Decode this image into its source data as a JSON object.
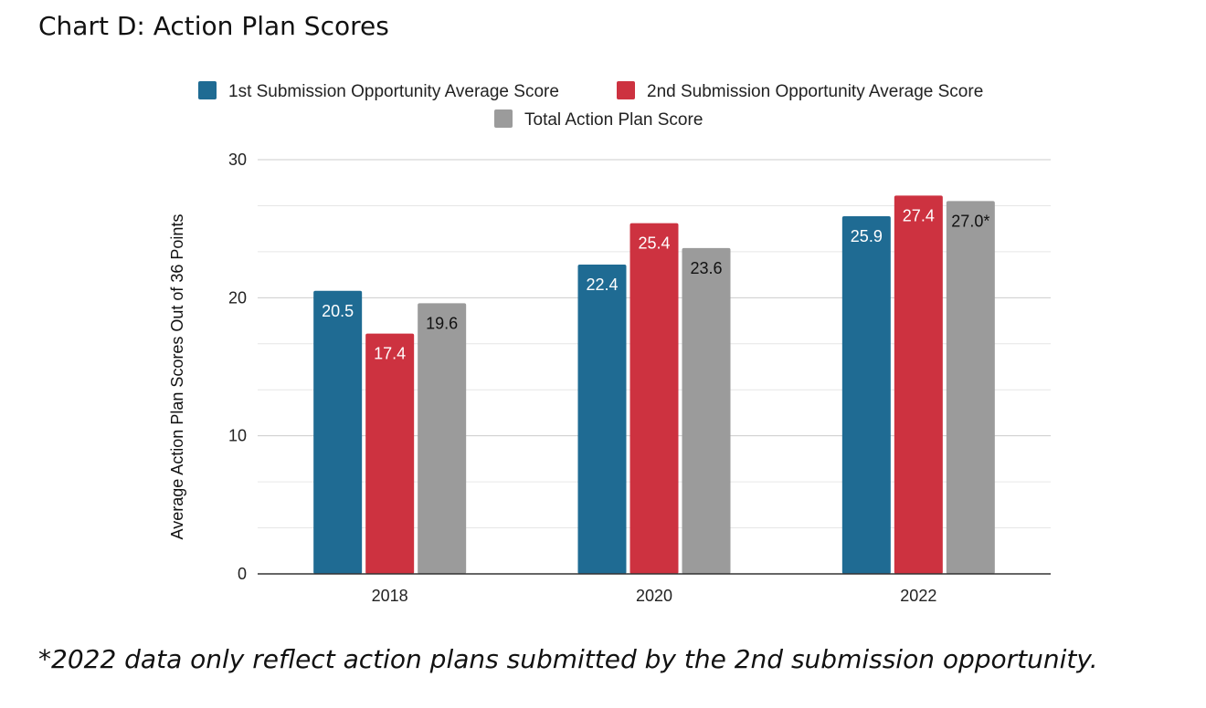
{
  "title": "Chart D: Action Plan Scores",
  "footnote": "*2022 data only reflect action plans submitted by the 2nd submission opportunity.",
  "chart_data": {
    "type": "bar",
    "categories": [
      "2018",
      "2020",
      "2022"
    ],
    "series": [
      {
        "name": "1st Submission Opportunity Average Score",
        "color": "#1f6b93",
        "label_color": "#ffffff",
        "values": [
          20.5,
          22.4,
          25.9
        ],
        "labels": [
          "20.5",
          "22.4",
          "25.9"
        ]
      },
      {
        "name": "2nd Submission Opportunity Average Score",
        "color": "#cd3240",
        "label_color": "#ffffff",
        "values": [
          17.4,
          25.4,
          27.4
        ],
        "labels": [
          "17.4",
          "25.4",
          "27.4"
        ]
      },
      {
        "name": "Total Action Plan Score",
        "color": "#9b9b9b",
        "label_color": "#111111",
        "values": [
          19.6,
          23.6,
          27.0
        ],
        "labels": [
          "19.6",
          "23.6",
          "27.0*"
        ]
      }
    ],
    "xlabel": "",
    "ylabel": "Average Action Plan Scores Out of 36 Points",
    "ylim": [
      0,
      30
    ],
    "yticks": [
      0,
      10,
      20,
      30
    ],
    "minor_gridlines": true,
    "legend": "top"
  }
}
